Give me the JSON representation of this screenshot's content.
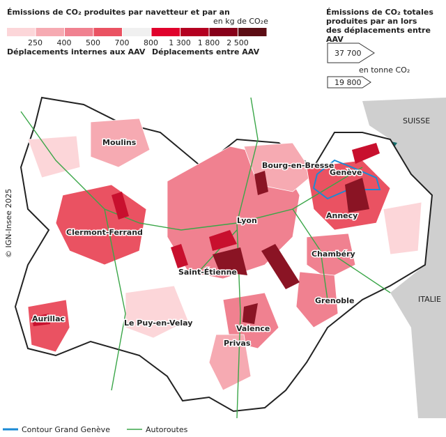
{
  "legend": {
    "title": "Émissions de CO₂ produites par navetteur et par an",
    "unit": "en kg de CO₂e",
    "internal": {
      "label": "Déplacements internes aux AAV",
      "classes": [
        {
          "color": "#fcd6d9",
          "label": "250"
        },
        {
          "color": "#f6aab2",
          "label": "400"
        },
        {
          "color": "#f08190",
          "label": "500"
        },
        {
          "color": "#ea5262",
          "label": "700"
        }
      ]
    },
    "neutral": {
      "color": "#f0f0f0",
      "label": "800"
    },
    "external": {
      "label": "Déplacements entre AAV",
      "classes": [
        {
          "color": "#e0022c",
          "label": "1 300"
        },
        {
          "color": "#b40020",
          "label": "1 800"
        },
        {
          "color": "#870019",
          "label": "2 500"
        },
        {
          "color": "#5c0d14"
        }
      ]
    }
  },
  "totals": {
    "title": "Émissions de CO₂ totales produites par an lors des déplacements entre AAV",
    "large": "37 700",
    "unit": "en tonne CO₂",
    "small": "19 800"
  },
  "cities": [
    "Moulins",
    "Bourg-en-Bresse",
    "Genève",
    "Lyon",
    "Annecy",
    "Clermont-Ferrand",
    "Saint-Étienne",
    "Chambéry",
    "Grenoble",
    "Aurillac",
    "Le Puy-en-Velay",
    "Valence",
    "Privas"
  ],
  "countries": [
    "SUISSE",
    "ITALIE"
  ],
  "credit": "© IGN-Insee 2025",
  "footer": {
    "contour": "Contour Grand Genève",
    "roads": "Autoroutes"
  }
}
